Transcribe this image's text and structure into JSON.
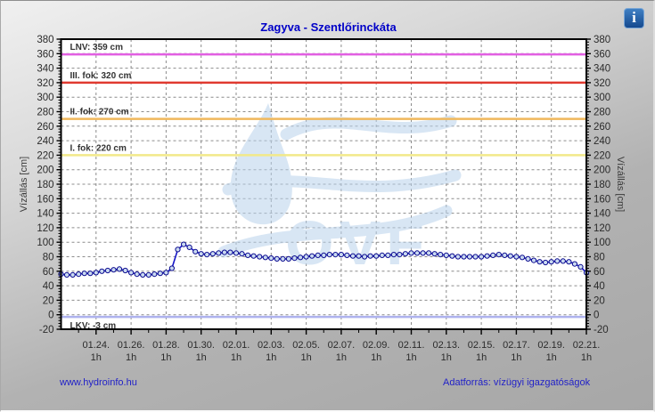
{
  "header": {
    "title": "Zagyva - Szentlőrinckáta",
    "info_icon": "i"
  },
  "chart_data": {
    "type": "line",
    "title": "Zagyva - Szentlőrinckáta",
    "watermark": "OVF",
    "y_axis": {
      "label": "Vízállás [cm]",
      "min": -20,
      "max": 380,
      "tick_step": 20,
      "minor_step": 4,
      "grid": true
    },
    "x_axis": {
      "tick_labels": [
        "01.24.",
        "01.26.",
        "01.28.",
        "01.30.",
        "02.01.",
        "02.03.",
        "02.05.",
        "02.07.",
        "02.09.",
        "02.11.",
        "02.13.",
        "02.15.",
        "02.17.",
        "02.19.",
        "02.21."
      ],
      "sub_label": "1h",
      "first_tick_day": 2,
      "interval_days": 2,
      "span_days": 30,
      "grid": true
    },
    "reference_lines": [
      {
        "id": "lnv",
        "label": "LNV: 359 cm",
        "value": 359,
        "color": "#e25fe2",
        "label_below": false
      },
      {
        "id": "fok3",
        "label": "III. fok: 320 cm",
        "value": 320,
        "color": "#e03a30",
        "label_below": false
      },
      {
        "id": "fok2",
        "label": "II. fok: 270 cm",
        "value": 270,
        "color": "#f0b85c",
        "label_below": false
      },
      {
        "id": "fok1",
        "label": "I. fok: 220 cm",
        "value": 220,
        "color": "#f2e98a",
        "label_below": false
      },
      {
        "id": "lkv",
        "label": "LKV: -3 cm",
        "value": -3,
        "color": "#aeb2ee",
        "label_below": true
      }
    ],
    "series": [
      {
        "name": "vízállás",
        "line_color": "#1616c8",
        "marker_fill": "#cadaf1",
        "marker_edge": "#0b0b8f",
        "interval_hours": 8,
        "values": [
          56,
          55,
          55,
          56,
          57,
          57,
          58,
          60,
          61,
          62,
          63,
          61,
          58,
          56,
          55,
          55,
          56,
          57,
          58,
          64,
          90,
          97,
          93,
          87,
          84,
          83,
          84,
          85,
          86,
          86,
          85,
          84,
          82,
          81,
          80,
          79,
          78,
          77,
          77,
          77,
          78,
          79,
          80,
          81,
          82,
          82,
          83,
          83,
          83,
          82,
          81,
          81,
          80,
          81,
          81,
          82,
          82,
          83,
          83,
          84,
          85,
          85,
          85,
          85,
          84,
          83,
          82,
          81,
          80,
          80,
          80,
          80,
          80,
          81,
          82,
          83,
          82,
          81,
          80,
          79,
          77,
          75,
          73,
          72,
          73,
          74,
          74,
          73,
          70,
          66,
          58
        ]
      }
    ],
    "colors": {
      "grid": "#8c8c8c",
      "plot_bg": "#ffffff",
      "axis": "#000000",
      "tick_text": "#2b2b2b",
      "ref_label": "#333333",
      "watermark": "#b9d2ec"
    }
  },
  "footer": {
    "left_link": "www.hydroinfo.hu",
    "right_text": "Adatforrás: vízügyi igazgatóságok"
  }
}
